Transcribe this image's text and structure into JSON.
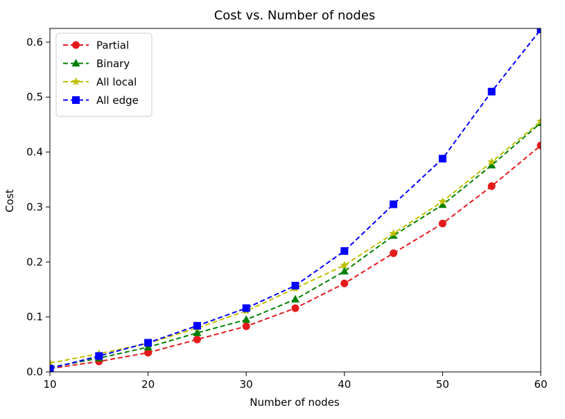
{
  "chart_data": {
    "type": "line",
    "title": "Cost vs. Number of nodes",
    "xlabel": "Number of nodes",
    "ylabel": "Cost",
    "xlim": [
      10,
      60
    ],
    "ylim": [
      0,
      0.625
    ],
    "xticks": [
      10,
      20,
      30,
      40,
      50,
      60
    ],
    "yticks": [
      0.0,
      0.1,
      0.2,
      0.3,
      0.4,
      0.5,
      0.6
    ],
    "grid": false,
    "legend_position": "upper-left",
    "x": [
      10,
      15,
      20,
      25,
      30,
      35,
      40,
      45,
      50,
      55,
      60
    ],
    "series": [
      {
        "name": "Partial",
        "color": "#e31a1c",
        "marker": "circle",
        "linestyle": "dashed",
        "values": [
          0.006,
          0.019,
          0.035,
          0.059,
          0.083,
          0.116,
          0.161,
          0.216,
          0.27,
          0.338,
          0.412
        ]
      },
      {
        "name": "Binary",
        "color": "#008000",
        "marker": "triangle",
        "linestyle": "dashed",
        "values": [
          0.008,
          0.025,
          0.045,
          0.071,
          0.095,
          0.132,
          0.183,
          0.248,
          0.304,
          0.376,
          0.453
        ]
      },
      {
        "name": "All local",
        "color": "#bfbf00",
        "marker": "star",
        "linestyle": "dashed",
        "values": [
          0.016,
          0.033,
          0.052,
          0.08,
          0.111,
          0.152,
          0.194,
          0.252,
          0.31,
          0.382,
          0.456
        ]
      },
      {
        "name": "All edge",
        "color": "#0000ff",
        "marker": "square",
        "linestyle": "dashed",
        "values": [
          0.006,
          0.029,
          0.053,
          0.084,
          0.116,
          0.157,
          0.22,
          0.305,
          0.388,
          0.51,
          0.623
        ]
      }
    ]
  }
}
